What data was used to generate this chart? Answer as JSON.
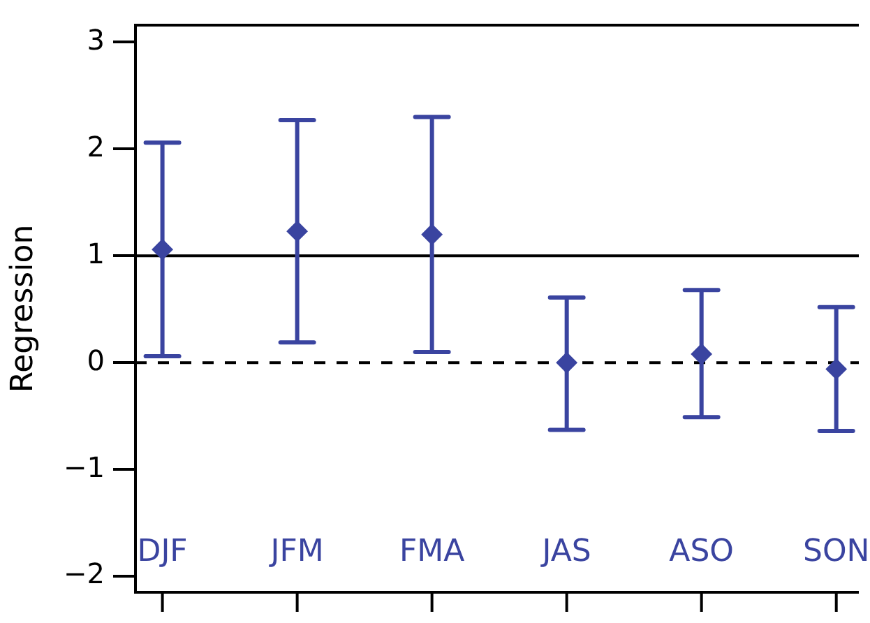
{
  "chart_data": {
    "type": "scatter",
    "ylabel": "Regression",
    "categories": [
      "DJF",
      "JFM",
      "FMA",
      "JAS",
      "ASO",
      "SON"
    ],
    "series": [
      {
        "color": "#3a44a0",
        "values": [
          1.06,
          1.23,
          1.2,
          0,
          0.08,
          -0.06
        ],
        "errors": [
          [
            0.06,
            2.06
          ],
          [
            0.19,
            2.27
          ],
          [
            0.1,
            2.3
          ],
          [
            -0.63,
            0.61
          ],
          [
            -0.51,
            0.68
          ],
          [
            -0.64,
            0.52
          ]
        ]
      }
    ],
    "marker": "diamond",
    "ylim": [
      -2.15,
      3.16
    ],
    "yticks": [
      -2,
      -1,
      0,
      1,
      2,
      3
    ],
    "grid": false,
    "legend": false,
    "ref_lines": [
      {
        "axis": "y",
        "value": 1,
        "line_style": "solid",
        "color": "#000000"
      },
      {
        "axis": "y",
        "value": 0,
        "line_style": "dashed",
        "color": "#000000"
      }
    ]
  }
}
